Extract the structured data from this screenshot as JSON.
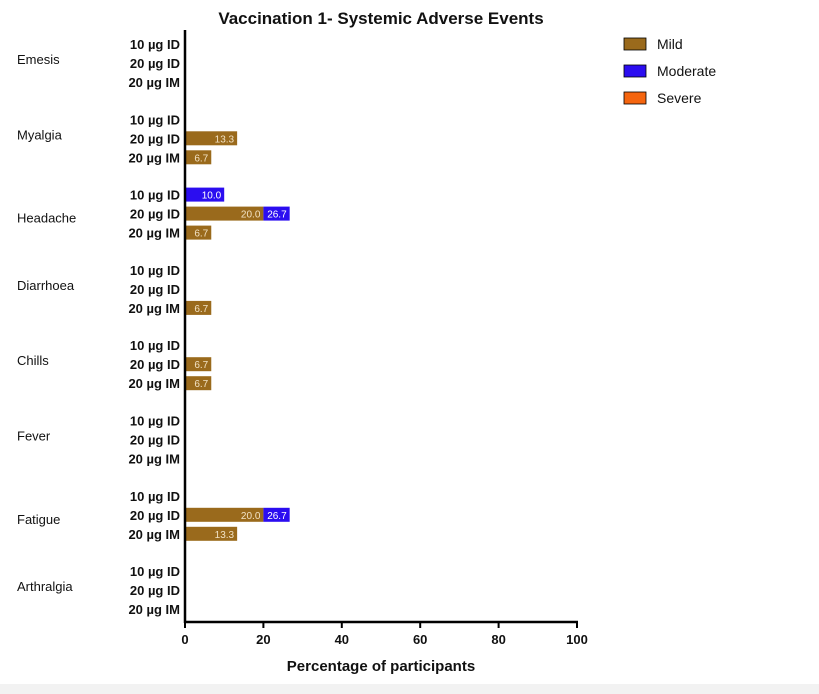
{
  "chart_data": {
    "type": "bar",
    "orientation": "horizontal",
    "stacked": true,
    "title": "Vaccination 1-  Systemic Adverse Events",
    "xlabel": "Percentage of participants",
    "xlim": [
      0,
      100
    ],
    "xticks": [
      0,
      20,
      40,
      60,
      80,
      100
    ],
    "grid": false,
    "legend_position": "top-right",
    "series": [
      {
        "name": "Mild",
        "color": "#9a6a1c"
      },
      {
        "name": "Moderate",
        "color": "#2b0df0"
      },
      {
        "name": "Severe",
        "color": "#f5650f"
      }
    ],
    "groups": [
      {
        "category": "Emesis",
        "rows": [
          {
            "label": "10 µg ID",
            "mild": 0,
            "moderate": 0,
            "severe": 0,
            "labels": []
          },
          {
            "label": "20 µg ID",
            "mild": 0,
            "moderate": 0,
            "severe": 0,
            "labels": []
          },
          {
            "label": "20 µg IM",
            "mild": 0,
            "moderate": 0,
            "severe": 0,
            "labels": []
          }
        ]
      },
      {
        "category": "Myalgia",
        "rows": [
          {
            "label": "10 µg ID",
            "mild": 0,
            "moderate": 0,
            "severe": 0,
            "labels": []
          },
          {
            "label": "20 µg ID",
            "mild": 13.3,
            "moderate": 0,
            "severe": 0,
            "labels": [
              "13.3"
            ]
          },
          {
            "label": "20 µg IM",
            "mild": 6.7,
            "moderate": 0,
            "severe": 0,
            "labels": [
              "6.7"
            ]
          }
        ]
      },
      {
        "category": "Headache",
        "rows": [
          {
            "label": "10 µg ID",
            "mild": 0,
            "moderate": 10.0,
            "severe": 0,
            "labels": [
              "",
              "10.0"
            ]
          },
          {
            "label": "20 µg ID",
            "mild": 20.0,
            "moderate": 6.7,
            "severe": 0,
            "labels": [
              "20.0",
              "26.7"
            ]
          },
          {
            "label": "20 µg IM",
            "mild": 6.7,
            "moderate": 0,
            "severe": 0,
            "labels": [
              "6.7"
            ]
          }
        ]
      },
      {
        "category": "Diarrhoea",
        "rows": [
          {
            "label": "10 µg ID",
            "mild": 0,
            "moderate": 0,
            "severe": 0,
            "labels": []
          },
          {
            "label": "20 µg ID",
            "mild": 0,
            "moderate": 0,
            "severe": 0,
            "labels": []
          },
          {
            "label": "20 µg IM",
            "mild": 6.7,
            "moderate": 0,
            "severe": 0,
            "labels": [
              "6.7"
            ]
          }
        ]
      },
      {
        "category": "Chills",
        "rows": [
          {
            "label": "10 µg ID",
            "mild": 0,
            "moderate": 0,
            "severe": 0,
            "labels": []
          },
          {
            "label": "20 µg ID",
            "mild": 6.7,
            "moderate": 0,
            "severe": 0,
            "labels": [
              "6.7"
            ]
          },
          {
            "label": "20 µg IM",
            "mild": 6.7,
            "moderate": 0,
            "severe": 0,
            "labels": [
              "6.7"
            ]
          }
        ]
      },
      {
        "category": "Fever",
        "rows": [
          {
            "label": "10 µg ID",
            "mild": 0,
            "moderate": 0,
            "severe": 0,
            "labels": []
          },
          {
            "label": "20 µg ID",
            "mild": 0,
            "moderate": 0,
            "severe": 0,
            "labels": []
          },
          {
            "label": "20 µg IM",
            "mild": 0,
            "moderate": 0,
            "severe": 0,
            "labels": []
          }
        ]
      },
      {
        "category": "Fatigue",
        "rows": [
          {
            "label": "10 µg ID",
            "mild": 0,
            "moderate": 0,
            "severe": 0,
            "labels": []
          },
          {
            "label": "20 µg ID",
            "mild": 20.0,
            "moderate": 6.7,
            "severe": 0,
            "labels": [
              "20.0",
              "26.7"
            ]
          },
          {
            "label": "20 µg IM",
            "mild": 13.3,
            "moderate": 0,
            "severe": 0,
            "labels": [
              "13.3"
            ]
          }
        ]
      },
      {
        "category": "Arthralgia",
        "rows": [
          {
            "label": "10 µg ID",
            "mild": 0,
            "moderate": 0,
            "severe": 0,
            "labels": []
          },
          {
            "label": "20 µg ID",
            "mild": 0,
            "moderate": 0,
            "severe": 0,
            "labels": []
          },
          {
            "label": "20 µg IM",
            "mild": 0,
            "moderate": 0,
            "severe": 0,
            "labels": []
          }
        ]
      }
    ]
  }
}
